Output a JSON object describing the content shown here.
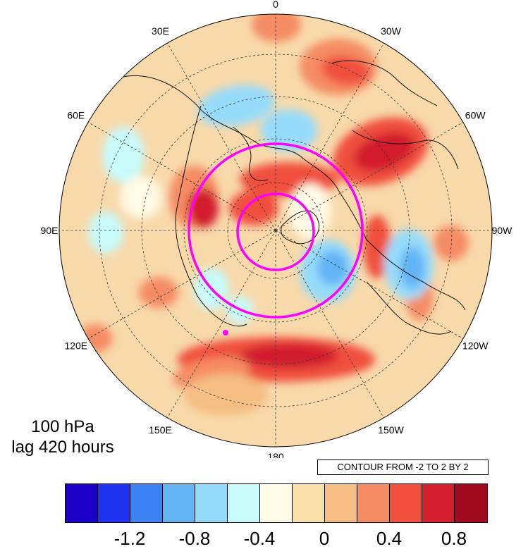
{
  "map": {
    "projection": "north-polar-stereographic",
    "longitude_labels": [
      "0",
      "30W",
      "60W",
      "90W",
      "120W",
      "150W",
      "180",
      "150E",
      "120E",
      "90E",
      "60E",
      "30E"
    ],
    "circle_color": "#ff00ff",
    "anomaly_pattern": "warm red anomalies over Eurasia, North Atlantic, North America and North Pacific; blue cold anomalies over Siberia-Arctic and eastern North America"
  },
  "info": {
    "level": "100 hPa",
    "lag": "lag 420 hours"
  },
  "contour_label": "CONTOUR FROM -2 TO 2 BY 2",
  "colorbar": {
    "colors": [
      "#1a00c8",
      "#1e32f0",
      "#3c82f5",
      "#64b4f5",
      "#96dcfa",
      "#c8fafa",
      "#fffae6",
      "#fae1aa",
      "#f5be82",
      "#f58c64",
      "#f0503c",
      "#d21e2d",
      "#a00a1e"
    ],
    "tick_labels": [
      "-1.2",
      "-0.8",
      "-0.4",
      "0",
      "0.4",
      "0.8"
    ]
  }
}
